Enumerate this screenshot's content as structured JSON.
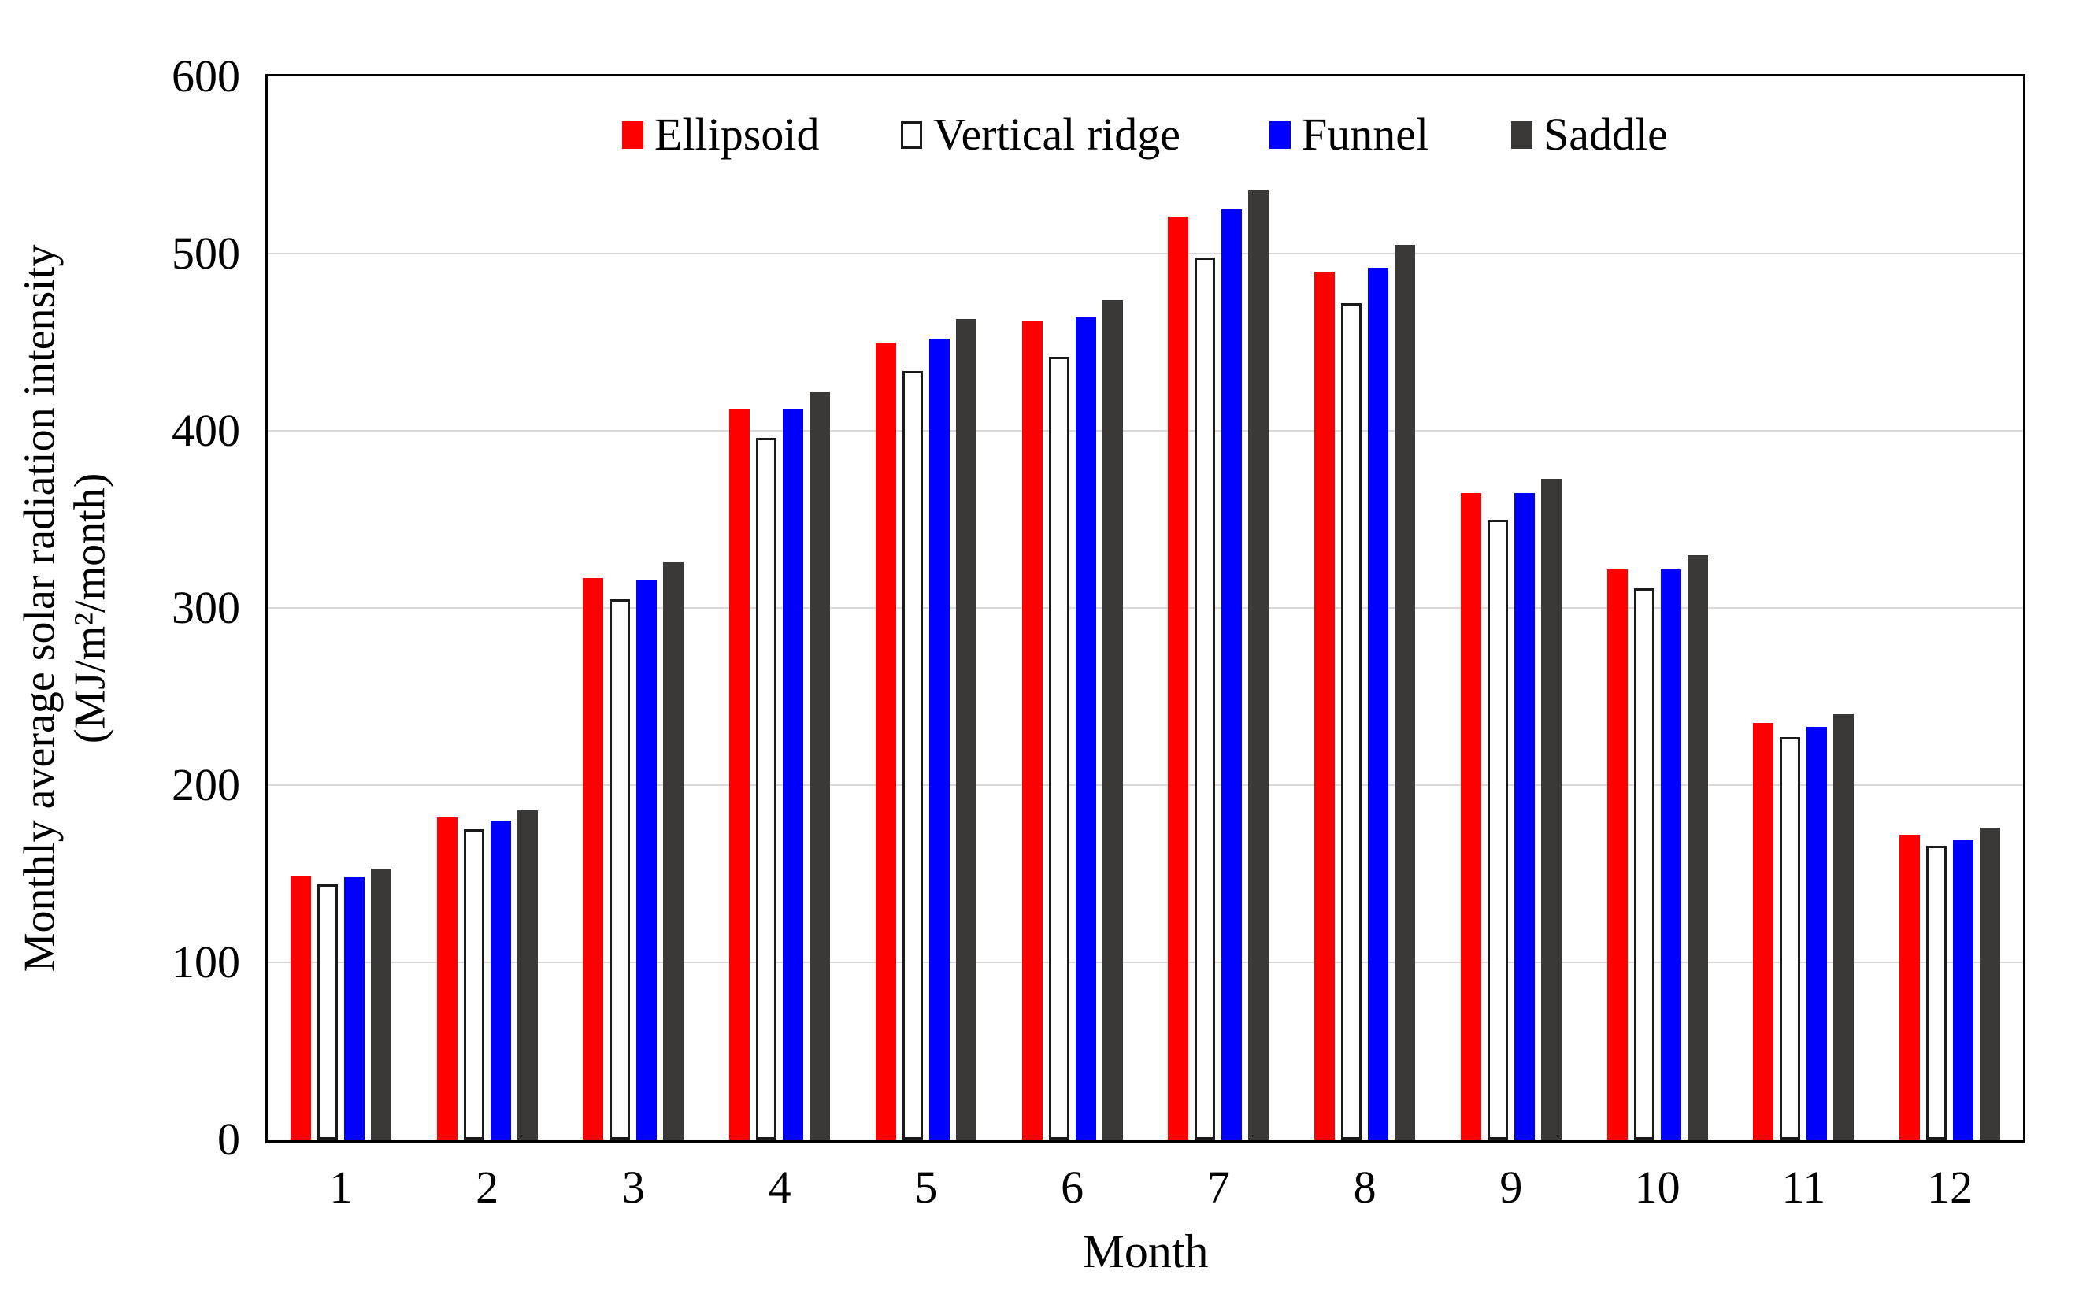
{
  "chart_data": {
    "type": "bar",
    "title": "",
    "xlabel": "Month",
    "ylabel_line1": "Monthly average solar radiation intensity",
    "ylabel_line2": "(MJ/m²/month)",
    "categories": [
      "1",
      "2",
      "3",
      "4",
      "5",
      "6",
      "7",
      "8",
      "9",
      "10",
      "11",
      "12"
    ],
    "series": [
      {
        "name": "Ellipsoid",
        "color": "#FF0000",
        "border": null,
        "values": [
          149,
          182,
          317,
          412,
          450,
          462,
          521,
          490,
          365,
          322,
          235,
          172
        ]
      },
      {
        "name": "Vertical ridge",
        "color": "#FFFFFF",
        "border": "#1A1A1A",
        "values": [
          144,
          175,
          305,
          396,
          434,
          442,
          498,
          472,
          350,
          311,
          227,
          166
        ]
      },
      {
        "name": "Funnel",
        "color": "#0000FF",
        "border": null,
        "values": [
          148,
          180,
          316,
          412,
          452,
          464,
          525,
          492,
          365,
          322,
          233,
          169
        ]
      },
      {
        "name": "Saddle",
        "color": "#3B3838",
        "border": null,
        "values": [
          153,
          186,
          326,
          422,
          463,
          474,
          536,
          505,
          373,
          330,
          240,
          176
        ]
      }
    ],
    "ylim": [
      0,
      600
    ],
    "ytick_step": 100,
    "yticks": [
      "0",
      "100",
      "200",
      "300",
      "400",
      "500",
      "600"
    ],
    "grid": "horizontal-light-gray",
    "gridline_color": "#D9D9D9",
    "legend_position": "top-inside",
    "axis_color": "#000000",
    "background_color": "#FFFFFF"
  }
}
